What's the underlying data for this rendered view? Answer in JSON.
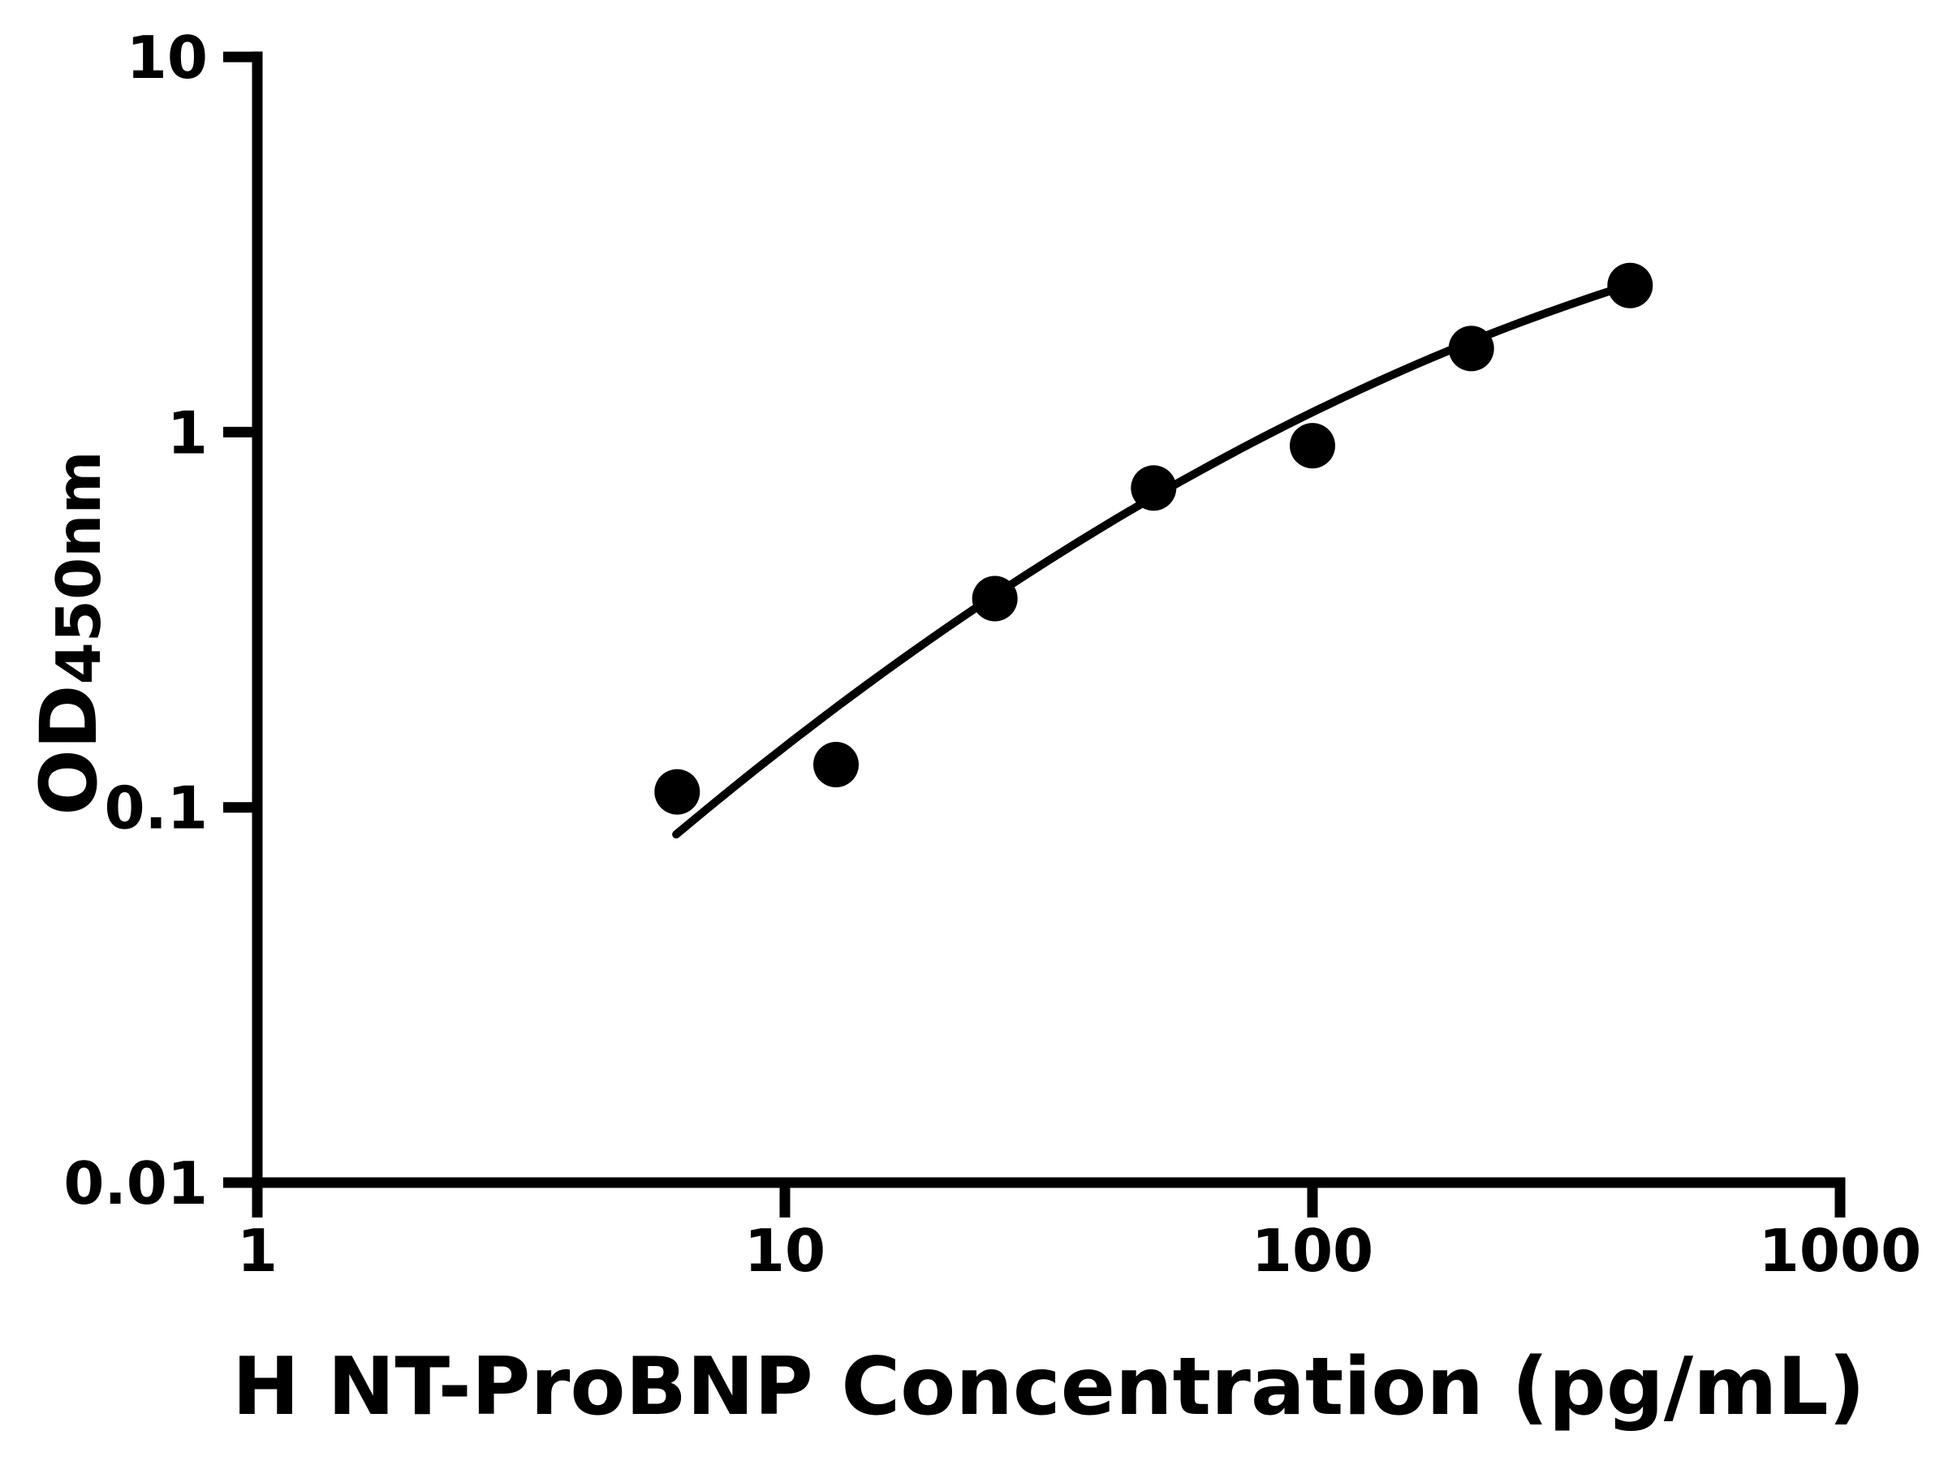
{
  "chart_data": {
    "type": "scatter",
    "title": "",
    "xlabel": "H NT-ProBNP Concentration (pg/mL)",
    "ylabel_main": "OD",
    "ylabel_sub": "450nm",
    "x_scale": "log",
    "y_scale": "log",
    "xlim": [
      1,
      1000
    ],
    "ylim": [
      0.01,
      10
    ],
    "grid": "off",
    "legend": "none",
    "x_ticks": [
      {
        "value": 1,
        "label": "1"
      },
      {
        "value": 10,
        "label": "10"
      },
      {
        "value": 100,
        "label": "100"
      },
      {
        "value": 1000,
        "label": "1000"
      }
    ],
    "y_ticks": [
      {
        "value": 0.01,
        "label": "0.01"
      },
      {
        "value": 0.1,
        "label": "0.1"
      },
      {
        "value": 1,
        "label": "1"
      },
      {
        "value": 10,
        "label": "10"
      }
    ],
    "points": [
      {
        "x": 6.25,
        "y": 0.11
      },
      {
        "x": 12.5,
        "y": 0.13
      },
      {
        "x": 25,
        "y": 0.36
      },
      {
        "x": 50,
        "y": 0.71
      },
      {
        "x": 100,
        "y": 0.92
      },
      {
        "x": 200,
        "y": 1.67
      },
      {
        "x": 400,
        "y": 2.46
      }
    ],
    "curve": {
      "model": "loglog-quadratic-fit",
      "a": -2.136,
      "b": 1.5015,
      "c": -0.2035,
      "log_x_start": 0.794,
      "log_x_end": 2.5953
    },
    "colors": {
      "axis": "#000000",
      "text": "#000000",
      "marker": "#000000",
      "curve": "#000000",
      "background": "#ffffff"
    }
  }
}
